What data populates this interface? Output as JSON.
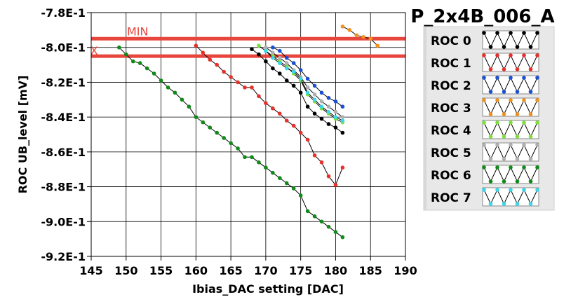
{
  "chart_data": {
    "type": "line",
    "title": "P_2x4B_006_A",
    "xlabel": "Ibias_DAC setting [DAC]",
    "ylabel": "ROC UB_level [mV]",
    "xlim": [
      145,
      190
    ],
    "ylim": [
      -0.92,
      -0.78
    ],
    "x_ticks": [
      145,
      150,
      155,
      160,
      165,
      170,
      175,
      180,
      185,
      190
    ],
    "x_tick_labels": [
      "145",
      "150",
      "155",
      "160",
      "165",
      "170",
      "175",
      "180",
      "185",
      "190"
    ],
    "y_ticks": [
      -0.78,
      -0.8,
      -0.82,
      -0.84,
      -0.86,
      -0.88,
      -0.9,
      -0.92
    ],
    "y_tick_labels": [
      "-7.8E-1",
      "-8.0E-1",
      "-8.2E-1",
      "-8.4E-1",
      "-8.6E-1",
      "-8.8E-1",
      "-9.0E-1",
      "-9.2E-1"
    ],
    "grid": true,
    "legend_position": "right",
    "reference_lines": [
      {
        "label": "MIN",
        "y": -0.795,
        "color": "#e8453c"
      },
      {
        "label": "MAX",
        "y": -0.805,
        "color": "#e8453c"
      }
    ],
    "series": [
      {
        "name": "ROC 0",
        "color": "#000000",
        "x": [
          168,
          169,
          170,
          171,
          172,
          173,
          174,
          175,
          176,
          177,
          178,
          179,
          180,
          181
        ],
        "y": [
          -0.801,
          -0.804,
          -0.808,
          -0.812,
          -0.815,
          -0.819,
          -0.822,
          -0.826,
          -0.834,
          -0.838,
          -0.841,
          -0.844,
          -0.846,
          -0.849
        ]
      },
      {
        "name": "ROC 1",
        "color": "#e8302a",
        "x": [
          160,
          161,
          162,
          163,
          164,
          165,
          166,
          167,
          168,
          169,
          170,
          171,
          172,
          173,
          174,
          175,
          176,
          177,
          178,
          179,
          180,
          181
        ],
        "y": [
          -0.799,
          -0.803,
          -0.807,
          -0.81,
          -0.814,
          -0.817,
          -0.82,
          -0.823,
          -0.823,
          -0.828,
          -0.832,
          -0.835,
          -0.838,
          -0.842,
          -0.845,
          -0.849,
          -0.853,
          -0.862,
          -0.866,
          -0.874,
          -0.879,
          -0.869
        ]
      },
      {
        "name": "ROC 2",
        "color": "#1a4fd6",
        "x": [
          171,
          172,
          173,
          174,
          175,
          176,
          177,
          178,
          179,
          180,
          181
        ],
        "y": [
          -0.8,
          -0.802,
          -0.806,
          -0.809,
          -0.813,
          -0.818,
          -0.822,
          -0.826,
          -0.829,
          -0.831,
          -0.834
        ]
      },
      {
        "name": "ROC 3",
        "color": "#f0921e",
        "x": [
          181,
          182,
          183,
          184,
          185,
          186
        ],
        "y": [
          -0.788,
          -0.79,
          -0.793,
          -0.794,
          -0.795,
          -0.799
        ]
      },
      {
        "name": "ROC 4",
        "color": "#7ee03a",
        "x": [
          169,
          170,
          171,
          172,
          173,
          174,
          175,
          176,
          177,
          178,
          179,
          180,
          181
        ],
        "y": [
          -0.799,
          -0.802,
          -0.805,
          -0.808,
          -0.811,
          -0.815,
          -0.819,
          -0.827,
          -0.831,
          -0.835,
          -0.838,
          -0.841,
          -0.843
        ]
      },
      {
        "name": "ROC 5",
        "color": "#b0b0b0",
        "x": [
          170,
          171,
          172,
          173,
          174,
          175,
          176,
          177,
          178,
          179,
          180,
          181
        ],
        "y": [
          -0.8,
          -0.803,
          -0.806,
          -0.809,
          -0.813,
          -0.817,
          -0.823,
          -0.827,
          -0.831,
          -0.834,
          -0.837,
          -0.84
        ]
      },
      {
        "name": "ROC 6",
        "color": "#0f8a18",
        "x": [
          149,
          150,
          151,
          152,
          153,
          154,
          155,
          156,
          157,
          158,
          159,
          160,
          161,
          162,
          163,
          164,
          165,
          166,
          167,
          168,
          169,
          170,
          171,
          172,
          173,
          174,
          175,
          176,
          177,
          178,
          179,
          180,
          181
        ],
        "y": [
          -0.8,
          -0.804,
          -0.808,
          -0.809,
          -0.812,
          -0.815,
          -0.819,
          -0.823,
          -0.826,
          -0.83,
          -0.834,
          -0.84,
          -0.843,
          -0.846,
          -0.849,
          -0.852,
          -0.855,
          -0.858,
          -0.863,
          -0.863,
          -0.866,
          -0.869,
          -0.872,
          -0.875,
          -0.878,
          -0.881,
          -0.885,
          -0.894,
          -0.897,
          -0.9,
          -0.903,
          -0.906,
          -0.909
        ]
      },
      {
        "name": "ROC 7",
        "color": "#3ad8e8",
        "x": [
          170,
          171,
          172,
          173,
          174,
          175,
          176,
          177,
          178,
          179,
          180,
          181
        ],
        "y": [
          -0.802,
          -0.806,
          -0.809,
          -0.812,
          -0.814,
          -0.818,
          -0.826,
          -0.83,
          -0.834,
          -0.837,
          -0.84,
          -0.842
        ]
      }
    ]
  }
}
